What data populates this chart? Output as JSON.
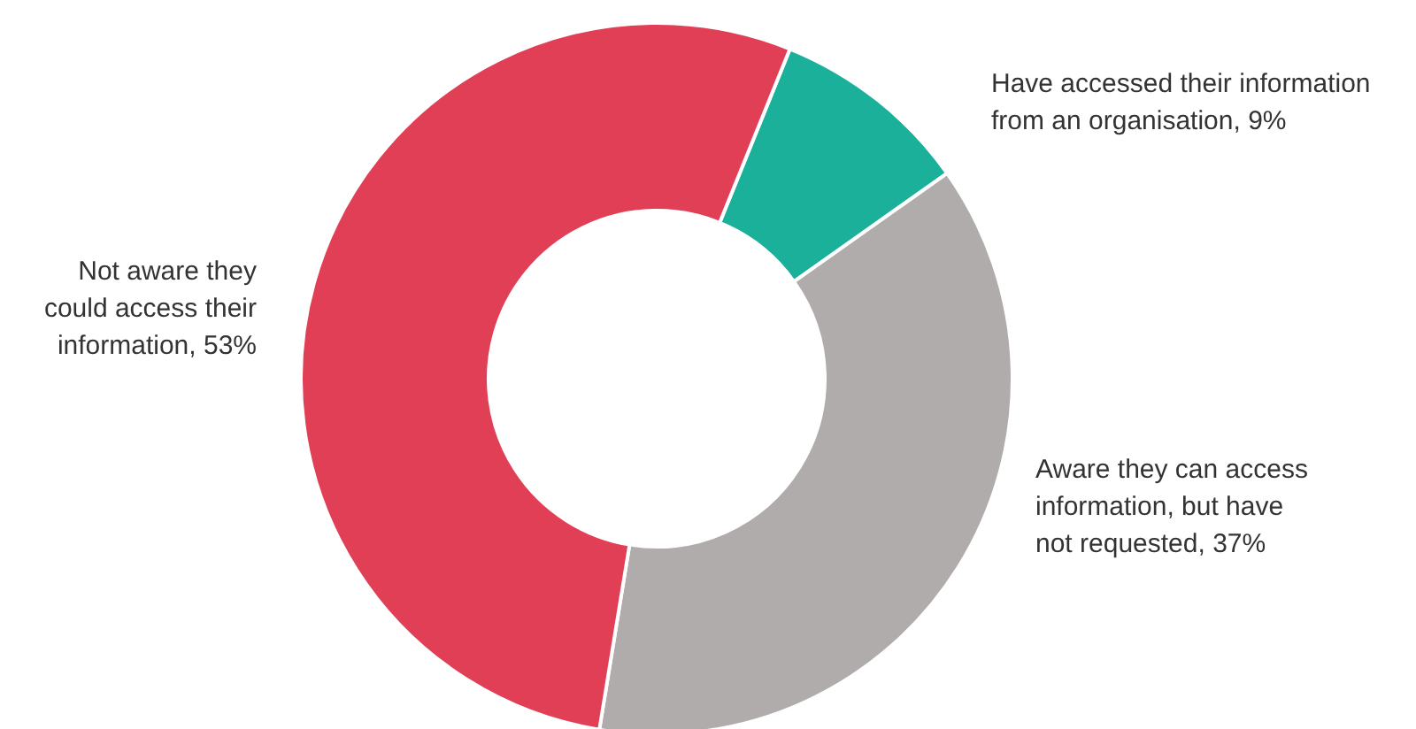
{
  "chart_data": {
    "type": "donut",
    "categories": [
      "Have accessed their information from an organisation",
      "Aware they can access information, but have not requested",
      "Not aware they could access their information"
    ],
    "values": [
      9,
      37,
      53
    ],
    "value_labels": [
      "9%",
      "37%",
      "53%"
    ],
    "colors": [
      "#1bb09a",
      "#b0acab",
      "#e03f55"
    ]
  }
}
